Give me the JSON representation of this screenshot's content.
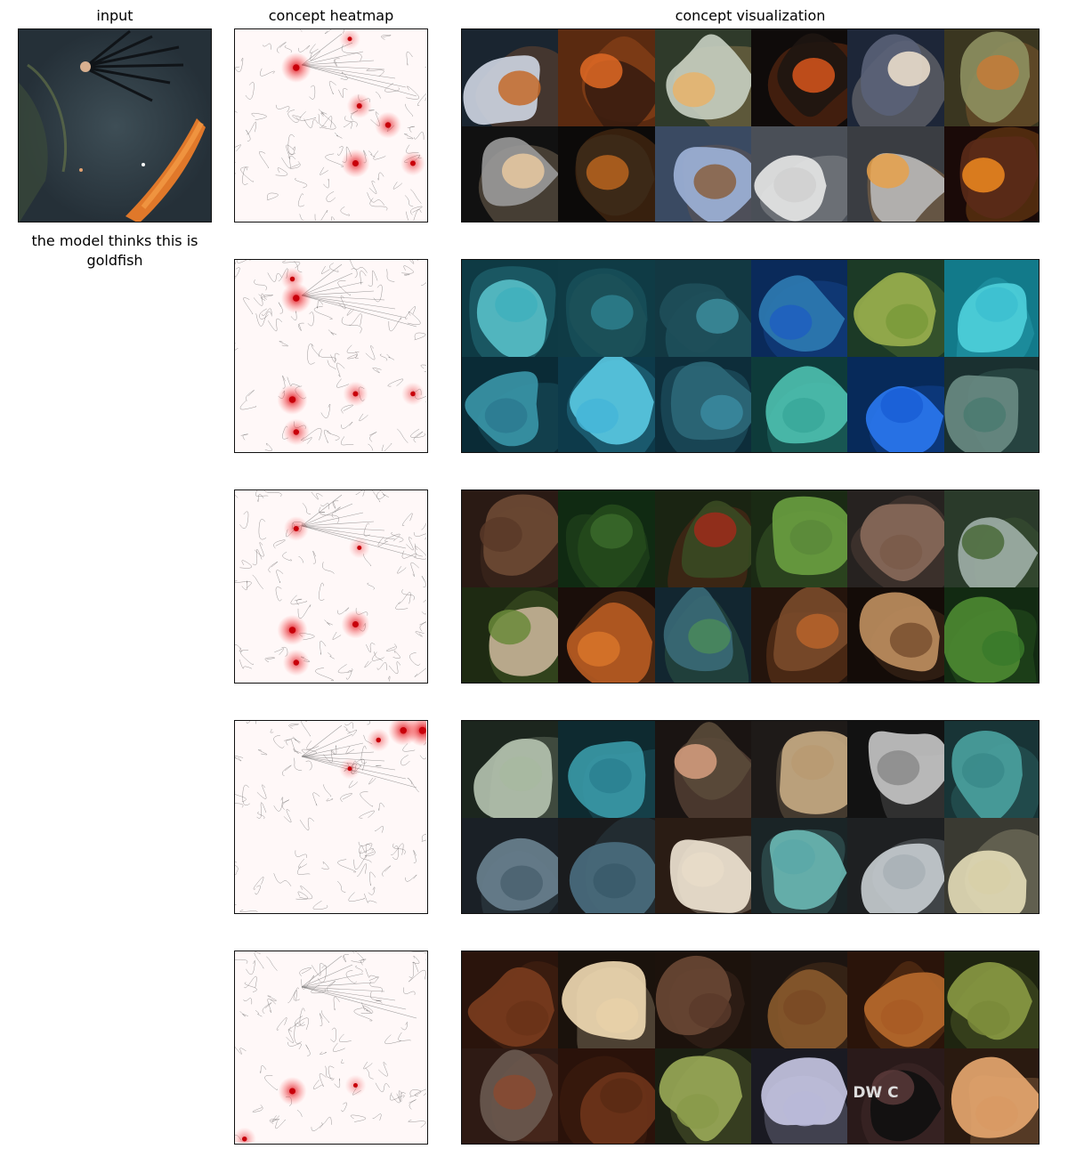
{
  "headers": {
    "input": "input",
    "heatmap": "concept heatmap",
    "visualization": "concept visualization"
  },
  "caption": "the model thinks this is goldfish",
  "concept_rows": [
    {
      "heatmap": {
        "spots": [
          [
            0.32,
            0.2,
            0.9
          ],
          [
            0.65,
            0.4,
            0.6
          ],
          [
            0.8,
            0.5,
            0.7
          ],
          [
            0.63,
            0.7,
            0.8
          ],
          [
            0.93,
            0.7,
            0.6
          ],
          [
            0.6,
            0.05,
            0.4
          ]
        ]
      },
      "tiles": [
        {
          "bg": "#1a2530",
          "fg": "#c46a2a",
          "mask": "#cfd6e3"
        },
        {
          "bg": "#5a2a10",
          "fg": "#e06a25",
          "mask": "#3a1d10"
        },
        {
          "bg": "#2f3a2a",
          "fg": "#e7b36a",
          "mask": "#c8d0c2"
        },
        {
          "bg": "#0f0b0a",
          "fg": "#d8561c",
          "mask": "#1e1511"
        },
        {
          "bg": "#1d2638",
          "fg": "#f2e4d0",
          "mask": "#5a6278"
        },
        {
          "bg": "#3a3620",
          "fg": "#c67b38",
          "mask": "#8e9060"
        },
        {
          "bg": "#111111",
          "fg": "#e8c8a0",
          "mask": "#9a9a9a"
        },
        {
          "bg": "#0c0a09",
          "fg": "#b8641e",
          "mask": "#3d2a18"
        },
        {
          "bg": "#3a4a62",
          "fg": "#8a6040",
          "mask": "#9fb3d8"
        },
        {
          "bg": "#4a4f57",
          "fg": "#d0d0d0",
          "mask": "#e8e8e8"
        },
        {
          "bg": "#3a3d42",
          "fg": "#e8a14a",
          "mask": "#b9b9b9"
        },
        {
          "bg": "#1a0a08",
          "fg": "#f08a20",
          "mask": "#5a2a18"
        }
      ]
    },
    {
      "heatmap": {
        "spots": [
          [
            0.32,
            0.2,
            0.9
          ],
          [
            0.3,
            0.1,
            0.5
          ],
          [
            0.63,
            0.7,
            0.6
          ],
          [
            0.3,
            0.73,
            0.9
          ],
          [
            0.32,
            0.9,
            0.7
          ],
          [
            0.93,
            0.7,
            0.5
          ]
        ]
      },
      "tiles": [
        {
          "bg": "#0e3a44",
          "fg": "#3fb0bd",
          "mask": "#58c0c9"
        },
        {
          "bg": "#0f3b45",
          "fg": "#2d7f8d",
          "mask": "#1c5159"
        },
        {
          "bg": "#123842",
          "fg": "#3c8d9c",
          "mask": "#1f4f5a"
        },
        {
          "bg": "#0a2a5a",
          "fg": "#1f5fbf",
          "mask": "#2e7bb3"
        },
        {
          "bg": "#1c3a26",
          "fg": "#7a9a3a",
          "mask": "#9ab04e"
        },
        {
          "bg": "#127a8a",
          "fg": "#3cc0d0",
          "mask": "#4fd0dc"
        },
        {
          "bg": "#0a2b36",
          "fg": "#2b7a90",
          "mask": "#3a96a8"
        },
        {
          "bg": "#0d3a4a",
          "fg": "#45b6d8",
          "mask": "#5ac9e2"
        },
        {
          "bg": "#0d2d3a",
          "fg": "#3a8aa0",
          "mask": "#2c6878"
        },
        {
          "bg": "#0e3b3a",
          "fg": "#39a89a",
          "mask": "#4ec1b0"
        },
        {
          "bg": "#072a5a",
          "fg": "#1a5ed6",
          "mask": "#2a78f0"
        },
        {
          "bg": "#1a3030",
          "fg": "#4a7a70",
          "mask": "#6a8c84"
        }
      ]
    },
    {
      "heatmap": {
        "spots": [
          [
            0.32,
            0.2,
            0.6
          ],
          [
            0.63,
            0.7,
            0.8
          ],
          [
            0.3,
            0.73,
            0.9
          ],
          [
            0.32,
            0.9,
            0.7
          ],
          [
            0.65,
            0.3,
            0.4
          ]
        ]
      },
      "tiles": [
        {
          "bg": "#2a1a14",
          "fg": "#5a3a28",
          "mask": "#6e4a34"
        },
        {
          "bg": "#102a12",
          "fg": "#3a6a2a",
          "mask": "#254a1c"
        },
        {
          "bg": "#1a2412",
          "fg": "#a02a1a",
          "mask": "#3a4a22"
        },
        {
          "bg": "#1a2a14",
          "fg": "#5a8a3a",
          "mask": "#6aa040"
        },
        {
          "bg": "#262220",
          "fg": "#7a5a4a",
          "mask": "#8a6a5a"
        },
        {
          "bg": "#2a3a2a",
          "fg": "#4a6a3a",
          "mask": "#a0b0a8"
        },
        {
          "bg": "#1e2a12",
          "fg": "#6a8a3a",
          "mask": "#c8b498"
        },
        {
          "bg": "#1a0e0a",
          "fg": "#d8742a",
          "mask": "#b85c22"
        },
        {
          "bg": "#122630",
          "fg": "#4a8a5a",
          "mask": "#3a6a78"
        },
        {
          "bg": "#24140c",
          "fg": "#b8642a",
          "mask": "#7a4a2a"
        },
        {
          "bg": "#140c08",
          "fg": "#7a5030",
          "mask": "#c09060"
        },
        {
          "bg": "#122a12",
          "fg": "#3a7a2a",
          "mask": "#4e8a32"
        }
      ]
    },
    {
      "heatmap": {
        "spots": [
          [
            0.98,
            0.05,
            1.0
          ],
          [
            0.88,
            0.05,
            0.9
          ],
          [
            0.75,
            0.1,
            0.5
          ],
          [
            0.6,
            0.25,
            0.4
          ]
        ]
      },
      "tiles": [
        {
          "bg": "#1c261e",
          "fg": "#a8b8a0",
          "mask": "#b6c4b0"
        },
        {
          "bg": "#0e2a30",
          "fg": "#2a8090",
          "mask": "#3a9aa8"
        },
        {
          "bg": "#1a1412",
          "fg": "#d8a080",
          "mask": "#5a4a3a"
        },
        {
          "bg": "#1e1a18",
          "fg": "#b89a72",
          "mask": "#c8ac84"
        },
        {
          "bg": "#121212",
          "fg": "#8a8a8a",
          "mask": "#c8c8c8"
        },
        {
          "bg": "#183436",
          "fg": "#3a8a8a",
          "mask": "#4aa2a0"
        },
        {
          "bg": "#1a2026",
          "fg": "#4a6270",
          "mask": "#6a8290"
        },
        {
          "bg": "#1a1c1e",
          "fg": "#3a5a6a",
          "mask": "#4a6e80"
        },
        {
          "bg": "#2a1c14",
          "fg": "#e8dcc8",
          "mask": "#f0e6d4"
        },
        {
          "bg": "#1a2426",
          "fg": "#5aa8a8",
          "mask": "#6ab8b4"
        },
        {
          "bg": "#1e2022",
          "fg": "#a8b0b6",
          "mask": "#c8ced2"
        },
        {
          "bg": "#3a3a32",
          "fg": "#d8d0a8",
          "mask": "#e6deb8"
        }
      ]
    },
    {
      "heatmap": {
        "spots": [
          [
            0.3,
            0.73,
            0.8
          ],
          [
            0.63,
            0.7,
            0.4
          ],
          [
            0.05,
            0.98,
            0.5
          ]
        ]
      },
      "tiles": [
        {
          "bg": "#2a140c",
          "fg": "#6a3218",
          "mask": "#7a3c1e"
        },
        {
          "bg": "#1a120c",
          "fg": "#e8d0a8",
          "mask": "#f2dcb4"
        },
        {
          "bg": "#1c120c",
          "fg": "#5a3a2a",
          "mask": "#6a4834"
        },
        {
          "bg": "#1c1410",
          "fg": "#7a4a24",
          "mask": "#8a5a2c"
        },
        {
          "bg": "#2a140a",
          "fg": "#a85a24",
          "mask": "#b86a2c"
        },
        {
          "bg": "#1e2410",
          "fg": "#7a8a3a",
          "mask": "#8a9a44"
        },
        {
          "bg": "#2e1a14",
          "fg": "#8a4a30",
          "mask": "#6a5a50"
        },
        {
          "bg": "#2a120a",
          "fg": "#5a2a14",
          "mask": "#6e341a"
        },
        {
          "bg": "#1a1e12",
          "fg": "#8a9a4a",
          "mask": "#9aaa58"
        },
        {
          "bg": "#1a1a22",
          "fg": "#b8b8d8",
          "mask": "#c8c8e4"
        },
        {
          "bg": "#2a1a1a",
          "fg": "#5a3a3a",
          "mask": "#101010",
          "text": "DW C"
        },
        {
          "bg": "#2a1a10",
          "fg": "#d89a64",
          "mask": "#e8a870"
        }
      ]
    }
  ]
}
